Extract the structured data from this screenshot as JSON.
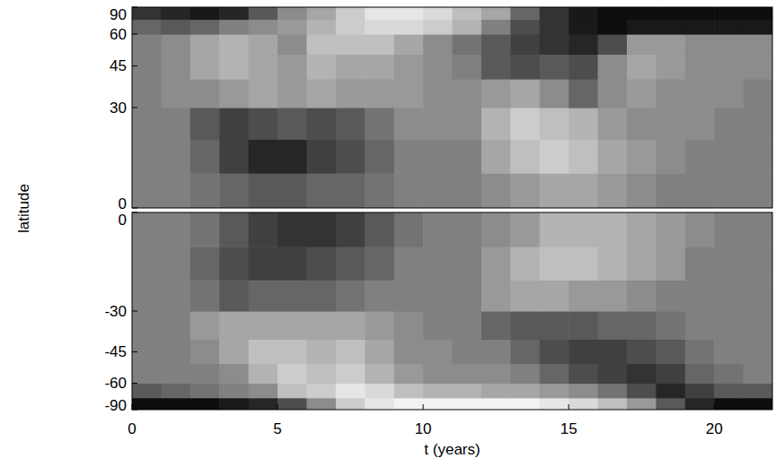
{
  "chart_data": [
    {
      "type": "heatmap",
      "ylabel": "latitude",
      "x": [
        0,
        1,
        2,
        3,
        4,
        5,
        6,
        7,
        8,
        9,
        10,
        11,
        12,
        13,
        14,
        15,
        16,
        17,
        18,
        19,
        20,
        21,
        22
      ],
      "y": [
        0,
        10,
        20,
        30,
        40,
        50,
        60,
        70,
        90
      ],
      "cells": [
        [
          0,
          0,
          -0.1,
          -0.2,
          -0.3,
          -0.3,
          -0.2,
          -0.2,
          -0.1,
          0,
          0,
          0,
          0.1,
          0.2,
          0.3,
          0.3,
          0.2,
          0.1,
          0,
          0,
          0,
          0
        ],
        [
          0,
          0,
          -0.2,
          -0.5,
          -0.7,
          -0.7,
          -0.5,
          -0.4,
          -0.2,
          0,
          0,
          0,
          0.3,
          0.5,
          0.6,
          0.5,
          0.3,
          0.2,
          0.1,
          0,
          0,
          0
        ],
        [
          0,
          0,
          -0.3,
          -0.5,
          -0.4,
          -0.3,
          -0.4,
          -0.3,
          -0.1,
          0.1,
          0.1,
          0.1,
          0.4,
          0.6,
          0.5,
          0.4,
          0.2,
          0.1,
          0.1,
          0.1,
          0,
          0
        ],
        [
          0,
          0.1,
          0.1,
          0.2,
          0.3,
          0.2,
          0.3,
          0.2,
          0.2,
          0.2,
          0.1,
          0.1,
          0.2,
          0.3,
          0.1,
          -0.2,
          0.1,
          0.2,
          0.1,
          0.1,
          0.1,
          0
        ],
        [
          0,
          0.1,
          0.3,
          0.4,
          0.3,
          0.2,
          0.4,
          0.3,
          0.3,
          0.2,
          0.1,
          0,
          -0.3,
          -0.4,
          -0.3,
          -0.4,
          0.1,
          0.3,
          0.2,
          0.1,
          0.1,
          0.1
        ],
        [
          0,
          0.1,
          0.3,
          0.4,
          0.3,
          0.1,
          0.5,
          0.5,
          0.5,
          0.3,
          0.1,
          -0.1,
          -0.3,
          -0.5,
          -0.6,
          -0.7,
          -0.4,
          0.2,
          0.2,
          0.1,
          0.1,
          0.1
        ],
        [
          -0.2,
          -0.3,
          -0.2,
          0,
          0.1,
          0.2,
          0.4,
          0.6,
          0.7,
          0.7,
          0.6,
          0.4,
          0,
          -0.4,
          -0.6,
          -0.8,
          -0.9,
          -0.8,
          -0.8,
          -0.8,
          -0.8,
          -0.8
        ],
        [
          -0.6,
          -0.7,
          -0.8,
          -0.7,
          -0.3,
          0.1,
          0.3,
          0.6,
          0.8,
          0.8,
          0.7,
          0.5,
          0.3,
          -0.2,
          -0.6,
          -0.8,
          -0.9,
          -0.9,
          -0.9,
          -0.9,
          -0.9,
          -0.9
        ]
      ],
      "color_range": [
        -1,
        1
      ],
      "xlim": [
        0,
        22
      ],
      "ylim": [
        0,
        90
      ],
      "yticks": [
        0,
        30,
        45,
        60,
        90
      ],
      "tick_labels": "y"
    },
    {
      "type": "heatmap",
      "xlabel": "t (years)",
      "x": [
        0,
        1,
        2,
        3,
        4,
        5,
        6,
        7,
        8,
        9,
        10,
        11,
        12,
        13,
        14,
        15,
        16,
        17,
        18,
        19,
        20,
        21,
        22
      ],
      "y": [
        -90,
        -70,
        -60,
        -50,
        -40,
        -30,
        -20,
        -10,
        0
      ],
      "cells": [
        [
          -0.9,
          -0.9,
          -0.9,
          -0.8,
          -0.7,
          -0.4,
          0.1,
          0.6,
          0.8,
          0.9,
          0.9,
          0.9,
          0.9,
          0.9,
          0.8,
          0.7,
          0.5,
          0.2,
          -0.3,
          -0.7,
          -0.9,
          -0.9
        ],
        [
          -0.3,
          -0.2,
          -0.1,
          0,
          0.1,
          0.5,
          0.6,
          0.8,
          0.7,
          0.5,
          0.4,
          0.4,
          0.3,
          0.3,
          0.2,
          0.1,
          -0.1,
          -0.4,
          -0.7,
          -0.5,
          -0.3,
          -0.3
        ],
        [
          0,
          0,
          0,
          0.1,
          0.4,
          0.6,
          0.5,
          0.6,
          0.4,
          0.2,
          0.1,
          0.1,
          0.1,
          0,
          -0.2,
          -0.4,
          -0.5,
          -0.6,
          -0.5,
          -0.2,
          -0.1,
          0
        ],
        [
          0,
          0,
          0.1,
          0.3,
          0.5,
          0.5,
          0.4,
          0.5,
          0.3,
          0.1,
          0.1,
          0,
          0,
          -0.2,
          -0.4,
          -0.5,
          -0.5,
          -0.4,
          -0.3,
          -0.1,
          0,
          0
        ],
        [
          0,
          0,
          0.2,
          0.3,
          0.3,
          0.3,
          0.3,
          0.3,
          0.2,
          0.1,
          0,
          0,
          -0.2,
          -0.3,
          -0.3,
          -0.3,
          -0.2,
          -0.2,
          -0.1,
          0,
          0,
          0
        ],
        [
          0,
          0,
          -0.1,
          -0.3,
          -0.2,
          -0.2,
          -0.2,
          -0.1,
          0,
          0,
          0,
          0,
          0.2,
          0.3,
          0.3,
          0.2,
          0.2,
          0.1,
          0,
          0,
          0,
          0
        ],
        [
          0,
          0,
          -0.2,
          -0.4,
          -0.5,
          -0.5,
          -0.4,
          -0.3,
          -0.2,
          0,
          0,
          0,
          0.2,
          0.4,
          0.5,
          0.5,
          0.4,
          0.3,
          0.2,
          0,
          0,
          0
        ],
        [
          0,
          0,
          -0.1,
          -0.3,
          -0.5,
          -0.6,
          -0.6,
          -0.5,
          -0.3,
          -0.1,
          0,
          0,
          0.1,
          0.2,
          0.4,
          0.4,
          0.4,
          0.3,
          0.2,
          0.1,
          0,
          0
        ]
      ],
      "color_range": [
        -1,
        1
      ],
      "xlim": [
        0,
        22
      ],
      "xticks": [
        0,
        5,
        10,
        15,
        20
      ],
      "ylim": [
        -90,
        0
      ],
      "yticks": [
        -90,
        -60,
        -45,
        -30,
        0
      ]
    }
  ]
}
